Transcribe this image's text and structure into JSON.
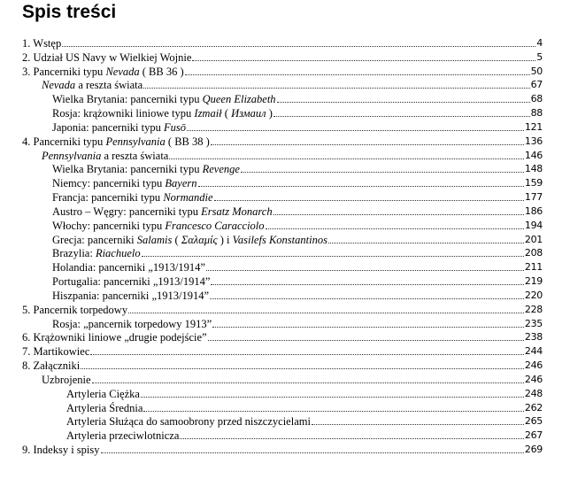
{
  "title": "Spis treści",
  "entries": [
    {
      "level": 1,
      "parts": [
        {
          "t": "1. Wstęp"
        }
      ],
      "page": "4"
    },
    {
      "level": 1,
      "parts": [
        {
          "t": "2. Udział US Navy w Wielkiej Wojnie"
        }
      ],
      "page": "5"
    },
    {
      "level": 1,
      "parts": [
        {
          "t": "3. Pancerniki typu "
        },
        {
          "t": "Nevada",
          "i": true
        },
        {
          "t": " ( BB 36 )"
        }
      ],
      "page": "50"
    },
    {
      "level": 2,
      "parts": [
        {
          "t": "Nevada",
          "i": true
        },
        {
          "t": " a reszta świata"
        }
      ],
      "page": "67"
    },
    {
      "level": 3,
      "parts": [
        {
          "t": "Wielka Brytania: pancerniki typu "
        },
        {
          "t": "Queen Elizabeth",
          "i": true
        }
      ],
      "page": "68"
    },
    {
      "level": 3,
      "parts": [
        {
          "t": "Rosja: krążowniki liniowe typu "
        },
        {
          "t": "Izmaił",
          "i": true
        },
        {
          "t": " ( "
        },
        {
          "t": "Измаил",
          "i": true
        },
        {
          "t": " )"
        }
      ],
      "page": "88"
    },
    {
      "level": 3,
      "parts": [
        {
          "t": "Japonia: pancerniki typu "
        },
        {
          "t": "Fusō",
          "i": true
        }
      ],
      "page": "121"
    },
    {
      "level": 1,
      "parts": [
        {
          "t": "4. Pancerniki typu "
        },
        {
          "t": "Pennsylvania",
          "i": true
        },
        {
          "t": " ( BB 38 )"
        }
      ],
      "page": "136"
    },
    {
      "level": 2,
      "parts": [
        {
          "t": "Pennsylvania",
          "i": true
        },
        {
          "t": " a reszta świata"
        }
      ],
      "page": "146"
    },
    {
      "level": 3,
      "parts": [
        {
          "t": "Wielka Brytania: pancerniki typu "
        },
        {
          "t": "Revenge",
          "i": true
        }
      ],
      "page": "148"
    },
    {
      "level": 3,
      "parts": [
        {
          "t": "Niemcy: pancerniki typu "
        },
        {
          "t": "Bayern",
          "i": true
        }
      ],
      "page": "159"
    },
    {
      "level": 3,
      "parts": [
        {
          "t": "Francja: pancerniki typu "
        },
        {
          "t": "Normandie",
          "i": true
        }
      ],
      "page": "177"
    },
    {
      "level": 3,
      "parts": [
        {
          "t": "Austro – Węgry: pancerniki typu "
        },
        {
          "t": "Ersatz Monarch",
          "i": true
        }
      ],
      "page": "186"
    },
    {
      "level": 3,
      "parts": [
        {
          "t": "Włochy: pancerniki typu "
        },
        {
          "t": "Francesco Caracciolo",
          "i": true
        }
      ],
      "page": "194"
    },
    {
      "level": 3,
      "parts": [
        {
          "t": "Grecja: pancerniki "
        },
        {
          "t": "Salamis",
          "i": true
        },
        {
          "t": " ( "
        },
        {
          "t": "Σαλαμίς",
          "i": true
        },
        {
          "t": " ) i "
        },
        {
          "t": "Vasilefs Konstantinos",
          "i": true
        }
      ],
      "page": "201"
    },
    {
      "level": 3,
      "parts": [
        {
          "t": "Brazylia: "
        },
        {
          "t": "Riachuelo",
          "i": true
        }
      ],
      "page": "208"
    },
    {
      "level": 3,
      "parts": [
        {
          "t": "Holandia: pancerniki „1913/1914”"
        }
      ],
      "page": "211"
    },
    {
      "level": 3,
      "parts": [
        {
          "t": "Portugalia: pancerniki „1913/1914”"
        }
      ],
      "page": "219"
    },
    {
      "level": 3,
      "parts": [
        {
          "t": "Hiszpania: pancerniki „1913/1914”"
        }
      ],
      "page": "220"
    },
    {
      "level": 1,
      "parts": [
        {
          "t": "5. Pancernik torpedowy"
        }
      ],
      "page": "228"
    },
    {
      "level": 3,
      "parts": [
        {
          "t": "Rosja: „pancernik torpedowy 1913”"
        }
      ],
      "page": "235"
    },
    {
      "level": 1,
      "parts": [
        {
          "t": "6. Krążowniki liniowe „drugie podejście”"
        }
      ],
      "page": "238"
    },
    {
      "level": 1,
      "parts": [
        {
          "t": "7. Martikowiec"
        }
      ],
      "page": "244"
    },
    {
      "level": 1,
      "parts": [
        {
          "t": "8. Załączniki"
        }
      ],
      "page": "246"
    },
    {
      "level": 2,
      "parts": [
        {
          "t": "Uzbrojenie"
        }
      ],
      "page": "246"
    },
    {
      "level": 4,
      "parts": [
        {
          "t": "Artyleria Ciężka"
        }
      ],
      "page": "248"
    },
    {
      "level": 4,
      "parts": [
        {
          "t": "Artyleria Średnia"
        }
      ],
      "page": "262"
    },
    {
      "level": 4,
      "parts": [
        {
          "t": "Artyleria Służąca do samoobrony przed niszczycielami"
        }
      ],
      "page": "265"
    },
    {
      "level": 4,
      "parts": [
        {
          "t": "Artyleria przeciwlotnicza"
        }
      ],
      "page": "267"
    },
    {
      "level": 1,
      "parts": [
        {
          "t": "9. Indeksy i spisy"
        }
      ],
      "page": "269"
    }
  ]
}
